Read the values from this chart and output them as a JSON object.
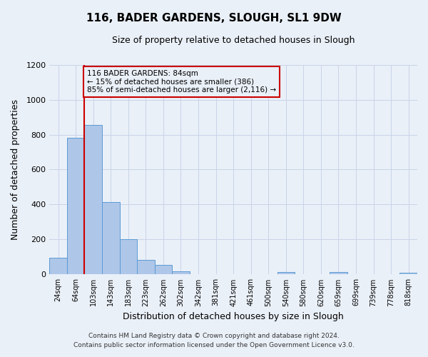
{
  "title": "116, BADER GARDENS, SLOUGH, SL1 9DW",
  "subtitle": "Size of property relative to detached houses in Slough",
  "xlabel": "Distribution of detached houses by size in Slough",
  "ylabel": "Number of detached properties",
  "bar_labels": [
    "24sqm",
    "64sqm",
    "103sqm",
    "143sqm",
    "183sqm",
    "223sqm",
    "262sqm",
    "302sqm",
    "342sqm",
    "381sqm",
    "421sqm",
    "461sqm",
    "500sqm",
    "540sqm",
    "580sqm",
    "620sqm",
    "659sqm",
    "699sqm",
    "739sqm",
    "778sqm",
    "818sqm"
  ],
  "bar_values": [
    95,
    780,
    855,
    415,
    200,
    85,
    55,
    20,
    0,
    0,
    0,
    0,
    0,
    15,
    0,
    0,
    15,
    0,
    0,
    0,
    10
  ],
  "bar_color": "#aec6e8",
  "bar_edgecolor": "#5b9bd5",
  "vline_x": 1.5,
  "vline_color": "#cc0000",
  "annotation_line1": "116 BADER GARDENS: 84sqm",
  "annotation_line2": "← 15% of detached houses are smaller (386)",
  "annotation_line3": "85% of semi-detached houses are larger (2,116) →",
  "annotation_box_edgecolor": "#cc0000",
  "ylim": [
    0,
    1200
  ],
  "yticks": [
    0,
    200,
    400,
    600,
    800,
    1000,
    1200
  ],
  "grid_color": "#c8d4e8",
  "background_color": "#eaf0f8",
  "footer_line1": "Contains HM Land Registry data © Crown copyright and database right 2024.",
  "footer_line2": "Contains public sector information licensed under the Open Government Licence v3.0."
}
